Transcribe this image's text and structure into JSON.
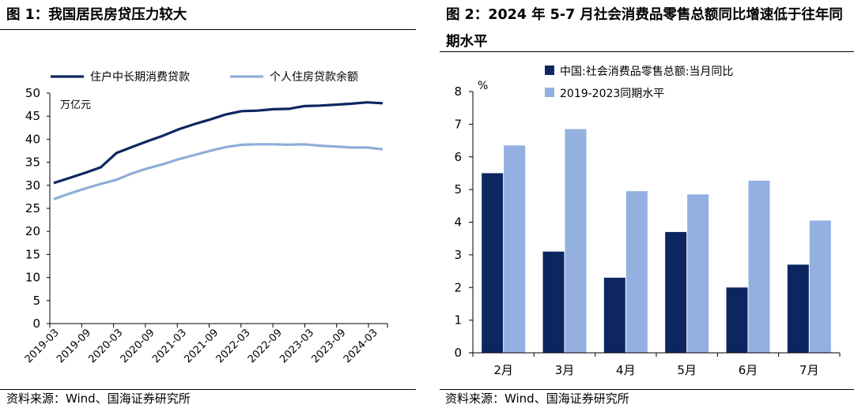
{
  "left": {
    "title": "图 1：我国居民房贷压力较大",
    "source": "资料来源：Wind、国海证券研究所",
    "chart_data": {
      "type": "line",
      "unit_label": "万亿元",
      "ylim": [
        0,
        50
      ],
      "yticks": [
        0,
        5,
        10,
        15,
        20,
        25,
        30,
        35,
        40,
        45,
        50
      ],
      "xticks": [
        "2019-03",
        "2019-09",
        "2020-03",
        "2020-09",
        "2021-03",
        "2021-09",
        "2022-03",
        "2022-09",
        "2023-03",
        "2023-09",
        "2024-03"
      ],
      "legend_position": "top",
      "grid": false,
      "series": [
        {
          "name": "住户中长期消费贷款",
          "color": "#0d2660",
          "values": [
            30.5,
            31.6,
            32.7,
            33.9,
            37.0,
            38.3,
            39.6,
            40.8,
            42.2,
            43.3,
            44.3,
            45.4,
            46.1,
            46.2,
            46.5,
            46.6,
            47.2,
            47.3,
            47.5,
            47.7,
            48.0,
            47.8
          ]
        },
        {
          "name": "个人住房贷款余额",
          "color": "#8eadd9",
          "values": [
            27.0,
            28.2,
            29.3,
            30.3,
            31.2,
            32.6,
            33.7,
            34.6,
            35.7,
            36.6,
            37.5,
            38.3,
            38.8,
            38.9,
            38.9,
            38.8,
            38.9,
            38.6,
            38.4,
            38.2,
            38.2,
            37.8
          ]
        }
      ]
    }
  },
  "right": {
    "title": "图 2：2024 年 5-7 月社会消费品零售总额同比增速低于往年同期水平",
    "source": "资料来源：Wind、国海证券研究所",
    "chart_data": {
      "type": "bar",
      "unit_label": "%",
      "ylim": [
        0,
        8
      ],
      "yticks": [
        0,
        1,
        2,
        3,
        4,
        5,
        6,
        7,
        8
      ],
      "categories": [
        "2月",
        "3月",
        "4月",
        "5月",
        "6月",
        "7月"
      ],
      "legend_position": "top-left",
      "grid": false,
      "series": [
        {
          "name": "中国:社会消费品零售总额:当月同比",
          "color": "#0d2660",
          "values": [
            5.5,
            3.1,
            2.3,
            3.7,
            2.0,
            2.7
          ]
        },
        {
          "name": "2019-2023同期水平",
          "color": "#93b0e0",
          "values": [
            6.35,
            6.85,
            4.95,
            4.85,
            5.27,
            4.05
          ]
        }
      ]
    }
  }
}
